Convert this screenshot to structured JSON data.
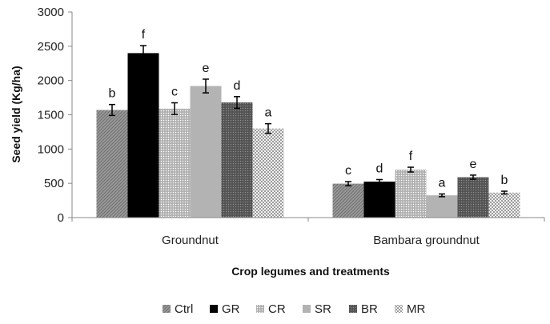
{
  "chart_data": {
    "type": "bar",
    "title": "",
    "xlabel": "Crop legumes and treatments",
    "ylabel": "Seed yield (Kg/ha)",
    "ylim": [
      0,
      3000
    ],
    "yticks": [
      "0",
      "500",
      "1000",
      "1500",
      "2000",
      "2500",
      "3000"
    ],
    "categories": [
      "Groundnut",
      "Bambara groundnut"
    ],
    "series": [
      {
        "name": "Ctrl",
        "values": [
          1570,
          495
        ],
        "errors": [
          80,
          30
        ],
        "letters": [
          "b",
          "c"
        ],
        "pattern": "diag"
      },
      {
        "name": "GR",
        "values": [
          2400,
          525
        ],
        "errors": [
          110,
          30
        ],
        "letters": [
          "f",
          "d"
        ],
        "pattern": "black"
      },
      {
        "name": "CR",
        "values": [
          1590,
          700
        ],
        "errors": [
          85,
          35
        ],
        "letters": [
          "c",
          "f"
        ],
        "pattern": "dots"
      },
      {
        "name": "SR",
        "values": [
          1920,
          325
        ],
        "errors": [
          100,
          20
        ],
        "letters": [
          "e",
          "a"
        ],
        "pattern": "lightgrey"
      },
      {
        "name": "BR",
        "values": [
          1680,
          590
        ],
        "errors": [
          85,
          30
        ],
        "letters": [
          "d",
          "e"
        ],
        "pattern": "darkdots"
      },
      {
        "name": "MR",
        "values": [
          1300,
          365
        ],
        "errors": [
          70,
          20
        ],
        "letters": [
          "a",
          "b"
        ],
        "pattern": "checker"
      }
    ],
    "legend_position": "bottom"
  },
  "colors": {
    "axis": "#888888",
    "black": "#000000",
    "lightgrey": "#b3b3b3"
  }
}
